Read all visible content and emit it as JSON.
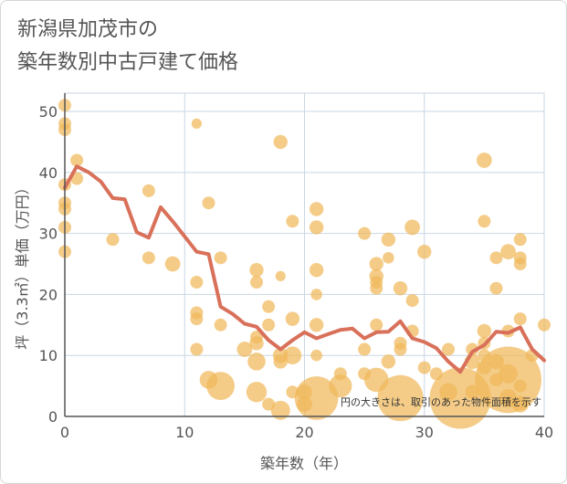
{
  "title_line1": "新潟県加茂市の",
  "title_line2": "築年数別中古戸建て価格",
  "chart_data": {
    "type": "scatter",
    "xlabel": "築年数（年）",
    "ylabel": "坪（3.3㎡）単価（万円）",
    "xlim": [
      0,
      40
    ],
    "ylim": [
      0,
      53
    ],
    "xticks": [
      0,
      10,
      20,
      30,
      40
    ],
    "yticks": [
      0,
      10,
      20,
      30,
      40,
      50
    ],
    "note": "円の大きさは、取引のあった物件面積を示す",
    "colors": {
      "bubble": "#f0b95a",
      "line": "#d9705a",
      "grid": "#c9d6e3"
    },
    "bubbles": [
      {
        "x": 0,
        "y": 51,
        "s": 1
      },
      {
        "x": 0,
        "y": 48,
        "s": 1
      },
      {
        "x": 0,
        "y": 47,
        "s": 1
      },
      {
        "x": 0,
        "y": 38,
        "s": 1
      },
      {
        "x": 0,
        "y": 35,
        "s": 1
      },
      {
        "x": 0,
        "y": 34,
        "s": 1
      },
      {
        "x": 0,
        "y": 31,
        "s": 1
      },
      {
        "x": 0,
        "y": 27,
        "s": 1
      },
      {
        "x": 1,
        "y": 42,
        "s": 1
      },
      {
        "x": 1,
        "y": 39,
        "s": 1
      },
      {
        "x": 4,
        "y": 29,
        "s": 1
      },
      {
        "x": 7,
        "y": 37,
        "s": 1
      },
      {
        "x": 7,
        "y": 26,
        "s": 1
      },
      {
        "x": 9,
        "y": 25,
        "s": 1.2
      },
      {
        "x": 11,
        "y": 48,
        "s": 0.8
      },
      {
        "x": 11,
        "y": 22,
        "s": 1
      },
      {
        "x": 11,
        "y": 17,
        "s": 1
      },
      {
        "x": 11,
        "y": 16,
        "s": 1
      },
      {
        "x": 11,
        "y": 11,
        "s": 1
      },
      {
        "x": 12,
        "y": 35,
        "s": 1
      },
      {
        "x": 12,
        "y": 6,
        "s": 1.4
      },
      {
        "x": 13,
        "y": 5,
        "s": 2.2
      },
      {
        "x": 13,
        "y": 26,
        "s": 1
      },
      {
        "x": 13,
        "y": 15,
        "s": 1
      },
      {
        "x": 15,
        "y": 11,
        "s": 1.2
      },
      {
        "x": 16,
        "y": 24,
        "s": 1.1
      },
      {
        "x": 16,
        "y": 22,
        "s": 1
      },
      {
        "x": 16,
        "y": 13,
        "s": 1
      },
      {
        "x": 16,
        "y": 12,
        "s": 1.1
      },
      {
        "x": 16,
        "y": 9,
        "s": 1.4
      },
      {
        "x": 16,
        "y": 4,
        "s": 1.6
      },
      {
        "x": 17,
        "y": 18,
        "s": 1
      },
      {
        "x": 17,
        "y": 15,
        "s": 1
      },
      {
        "x": 17,
        "y": 2,
        "s": 1
      },
      {
        "x": 18,
        "y": 45,
        "s": 1.1
      },
      {
        "x": 18,
        "y": 23,
        "s": 0.8
      },
      {
        "x": 18,
        "y": 10,
        "s": 1.2
      },
      {
        "x": 18,
        "y": 9,
        "s": 1.1
      },
      {
        "x": 18,
        "y": 1,
        "s": 1.5
      },
      {
        "x": 19,
        "y": 32,
        "s": 1
      },
      {
        "x": 19,
        "y": 16,
        "s": 1.1
      },
      {
        "x": 19,
        "y": 10,
        "s": 1.4
      },
      {
        "x": 19,
        "y": 4,
        "s": 1
      },
      {
        "x": 20,
        "y": 4,
        "s": 1.2
      },
      {
        "x": 20,
        "y": 2,
        "s": 1.2
      },
      {
        "x": 21,
        "y": 34,
        "s": 1.1
      },
      {
        "x": 21,
        "y": 31,
        "s": 1.1
      },
      {
        "x": 21,
        "y": 24,
        "s": 1.1
      },
      {
        "x": 21,
        "y": 20,
        "s": 0.9
      },
      {
        "x": 21,
        "y": 15,
        "s": 1.1
      },
      {
        "x": 21,
        "y": 10,
        "s": 0.9
      },
      {
        "x": 21,
        "y": 3,
        "s": 3.4
      },
      {
        "x": 23,
        "y": 7,
        "s": 1
      },
      {
        "x": 23,
        "y": 5,
        "s": 1.8
      },
      {
        "x": 25,
        "y": 30,
        "s": 1
      },
      {
        "x": 25,
        "y": 11,
        "s": 1
      },
      {
        "x": 25,
        "y": 7,
        "s": 1
      },
      {
        "x": 26,
        "y": 25,
        "s": 1.1
      },
      {
        "x": 26,
        "y": 23,
        "s": 1.1
      },
      {
        "x": 26,
        "y": 22,
        "s": 1
      },
      {
        "x": 26,
        "y": 21,
        "s": 1
      },
      {
        "x": 26,
        "y": 15,
        "s": 1
      },
      {
        "x": 26,
        "y": 6,
        "s": 1.9
      },
      {
        "x": 27,
        "y": 29,
        "s": 1.1
      },
      {
        "x": 27,
        "y": 26,
        "s": 0.9
      },
      {
        "x": 27,
        "y": 9,
        "s": 1.1
      },
      {
        "x": 28,
        "y": 21,
        "s": 1.1
      },
      {
        "x": 28,
        "y": 12,
        "s": 1
      },
      {
        "x": 28,
        "y": 11,
        "s": 1
      },
      {
        "x": 28,
        "y": 3,
        "s": 3.6
      },
      {
        "x": 29,
        "y": 31,
        "s": 1.2
      },
      {
        "x": 29,
        "y": 19,
        "s": 1
      },
      {
        "x": 29,
        "y": 14,
        "s": 1
      },
      {
        "x": 30,
        "y": 27,
        "s": 1.1
      },
      {
        "x": 30,
        "y": 8,
        "s": 1
      },
      {
        "x": 31,
        "y": 7,
        "s": 1
      },
      {
        "x": 32,
        "y": 11,
        "s": 1
      },
      {
        "x": 32,
        "y": 4,
        "s": 1.4
      },
      {
        "x": 33,
        "y": 3,
        "s": 4.8
      },
      {
        "x": 34,
        "y": 11,
        "s": 1
      },
      {
        "x": 34,
        "y": 9,
        "s": 1.2
      },
      {
        "x": 34,
        "y": 4,
        "s": 1.1
      },
      {
        "x": 35,
        "y": 42,
        "s": 1.2
      },
      {
        "x": 35,
        "y": 32,
        "s": 1
      },
      {
        "x": 35,
        "y": 14,
        "s": 1.1
      },
      {
        "x": 35,
        "y": 12,
        "s": 1
      },
      {
        "x": 35,
        "y": 10,
        "s": 1
      },
      {
        "x": 35,
        "y": 8,
        "s": 1.1
      },
      {
        "x": 36,
        "y": 26,
        "s": 1
      },
      {
        "x": 36,
        "y": 21,
        "s": 1
      },
      {
        "x": 36,
        "y": 9,
        "s": 1.2
      },
      {
        "x": 36,
        "y": 6,
        "s": 1
      },
      {
        "x": 37,
        "y": 27,
        "s": 1.2
      },
      {
        "x": 37,
        "y": 14,
        "s": 1
      },
      {
        "x": 37,
        "y": 7,
        "s": 1.5
      },
      {
        "x": 37,
        "y": 6,
        "s": 5.2
      },
      {
        "x": 37,
        "y": 3,
        "s": 1.4
      },
      {
        "x": 38,
        "y": 29,
        "s": 1
      },
      {
        "x": 38,
        "y": 26,
        "s": 1
      },
      {
        "x": 38,
        "y": 25,
        "s": 1
      },
      {
        "x": 38,
        "y": 16,
        "s": 1
      },
      {
        "x": 38,
        "y": 5,
        "s": 1
      },
      {
        "x": 38,
        "y": 2,
        "s": 1.3
      },
      {
        "x": 39,
        "y": 10,
        "s": 1
      },
      {
        "x": 40,
        "y": 15,
        "s": 1
      }
    ],
    "trend": {
      "x": [
        0,
        1,
        2,
        3,
        4,
        5,
        6,
        7,
        8,
        9,
        10,
        11,
        12,
        13,
        14,
        15,
        16,
        17,
        18,
        19,
        20,
        21,
        22,
        23,
        24,
        25,
        26,
        27,
        28,
        29,
        30,
        31,
        32,
        33,
        34,
        35,
        36,
        37,
        38,
        39,
        40
      ],
      "y": [
        37.5,
        41,
        40,
        38.5,
        35.8,
        35.6,
        30.2,
        29.3,
        34.3,
        32,
        29.5,
        27,
        26.6,
        18,
        16.8,
        15.2,
        14.7,
        12.5,
        11,
        12.5,
        13.8,
        12.8,
        13.5,
        14.2,
        14.4,
        12.8,
        13.8,
        13.9,
        15.6,
        12.8,
        12.2,
        11.2,
        9,
        7.3,
        10.6,
        11.7,
        13.9,
        13.7,
        14.6,
        11,
        9.2
      ]
    }
  }
}
